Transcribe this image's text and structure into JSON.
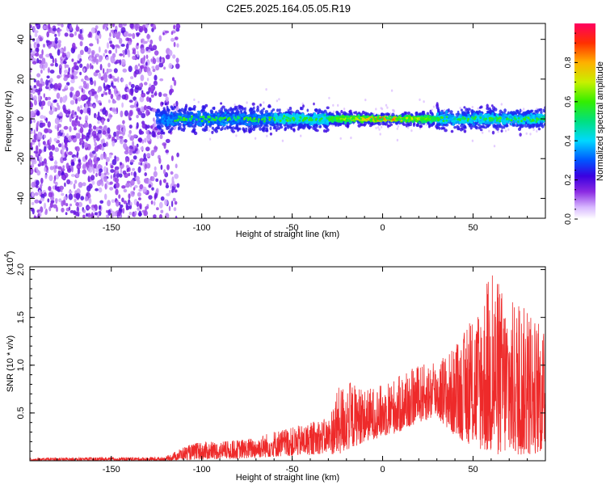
{
  "title": "C2E5.2025.164.05.05.R19",
  "chart_data": [
    {
      "type": "heatmap",
      "xlabel": "Height of straight line (km)",
      "ylabel": "Frequency (Hz)",
      "xlim": [
        -195,
        90
      ],
      "ylim": [
        -50,
        48
      ],
      "x_ticks": [
        "-150",
        "-100",
        "-50",
        "0",
        "50"
      ],
      "x_tick_values": [
        -150,
        -100,
        -50,
        0,
        50
      ],
      "y_ticks": [
        "-40",
        "-20",
        "0",
        "20",
        "40"
      ],
      "y_tick_values": [
        -40,
        -20,
        0,
        20,
        40
      ],
      "colorbar": {
        "label": "Normalized spectral amplitude",
        "range": [
          0,
          1
        ],
        "ticks": [
          "0.0",
          "0.2",
          "0.4",
          "0.6",
          "0.8"
        ],
        "tick_values": [
          0.0,
          0.2,
          0.4,
          0.6,
          0.8
        ]
      },
      "regions": [
        {
          "x": [
            -195,
            -120
          ],
          "freq_spread": 48,
          "amplitude": 0.15
        },
        {
          "x": [
            -120,
            -60
          ],
          "freq_spread": 8,
          "amplitude": 0.3
        },
        {
          "x": [
            -60,
            -30
          ],
          "freq_spread": 6,
          "amplitude": 0.45
        },
        {
          "x": [
            -30,
            30
          ],
          "freq_spread": 3,
          "amplitude": 0.9
        },
        {
          "x": [
            30,
            90
          ],
          "freq_spread": 7,
          "amplitude": 0.4
        }
      ],
      "grid": false
    },
    {
      "type": "line",
      "xlabel": "Height of straight line (km)",
      "ylabel": "SNR (10 * v/v)",
      "y_multiplier": "(x10",
      "y_multiplier_exp": "4",
      "xlim": [
        -195,
        90
      ],
      "ylim": [
        0,
        2.03
      ],
      "x_ticks": [
        "-150",
        "-100",
        "-50",
        "0",
        "50"
      ],
      "x_tick_values": [
        -150,
        -100,
        -50,
        0,
        50
      ],
      "y_ticks": [
        "0.5",
        "1.0",
        "1.5",
        "2.0"
      ],
      "y_tick_values": [
        0.5,
        1.0,
        1.5,
        2.0
      ],
      "color": "#ee2a2a",
      "envelope": {
        "x": [
          -195,
          -120,
          -110,
          -100,
          -90,
          -80,
          -70,
          -60,
          -50,
          -40,
          -30,
          -25,
          -20,
          -10,
          0,
          10,
          20,
          30,
          40,
          50,
          60,
          70,
          80,
          90
        ],
        "y_min": [
          0.0,
          0.0,
          0.01,
          0.01,
          0.02,
          0.02,
          0.03,
          0.04,
          0.05,
          0.06,
          0.08,
          0.05,
          0.1,
          0.2,
          0.25,
          0.3,
          0.4,
          0.45,
          0.25,
          0.15,
          0.05,
          0.05,
          0.05,
          0.1
        ],
        "y_max": [
          0.03,
          0.04,
          0.15,
          0.2,
          0.2,
          0.22,
          0.25,
          0.32,
          0.35,
          0.4,
          0.45,
          0.75,
          0.85,
          0.75,
          0.8,
          0.9,
          1.0,
          1.05,
          1.2,
          1.5,
          2.0,
          1.7,
          1.6,
          1.35
        ]
      }
    }
  ]
}
